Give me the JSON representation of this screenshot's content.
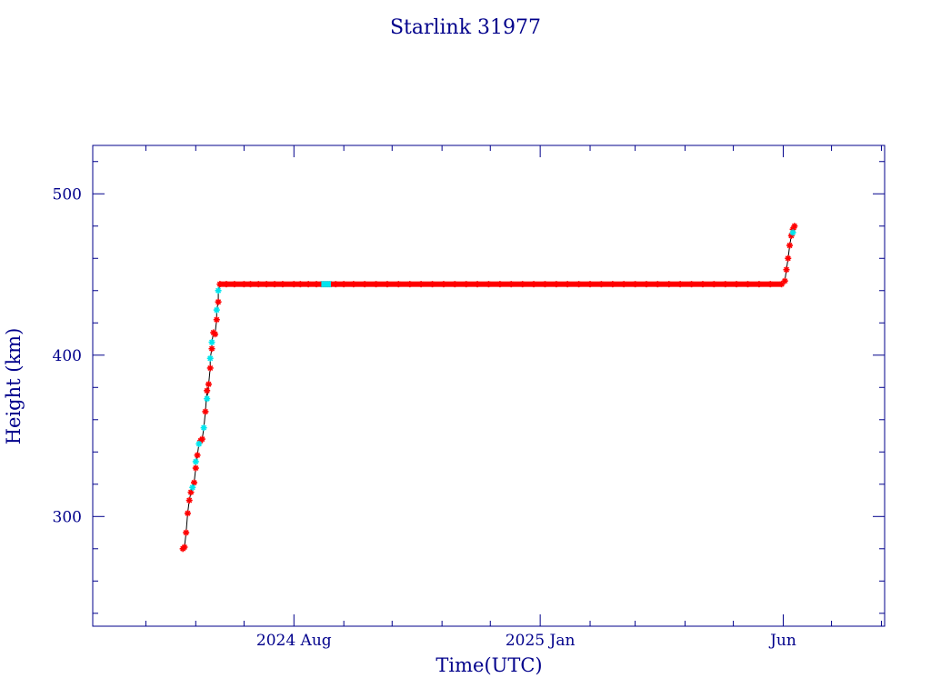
{
  "chart_data": {
    "type": "scatter",
    "title": "Starlink 31977",
    "xlabel": "Time(UTC)",
    "ylabel": "Height (km)",
    "ylim": [
      232,
      530
    ],
    "xlim": [
      "2024-03-29",
      "2025-08-03"
    ],
    "x_ticks": [
      {
        "date": "2024-08-01",
        "label": "2024 Aug"
      },
      {
        "date": "2025-01-01",
        "label": "2025 Jan"
      },
      {
        "date": "2025-06-01",
        "label": "Jun"
      }
    ],
    "x_minor_ticks": [
      "2024-05-01",
      "2024-06-01",
      "2024-07-01",
      "2024-09-01",
      "2024-10-01",
      "2024-11-01",
      "2024-12-01",
      "2025-02-01",
      "2025-03-01",
      "2025-04-01",
      "2025-05-01",
      "2025-07-01",
      "2025-08-01"
    ],
    "y_ticks": [
      300,
      400,
      500
    ],
    "y_minor_step": 20,
    "grid": false,
    "colors": {
      "frame": "#00008b",
      "line": "#000000",
      "marker_main": "#ff0000",
      "marker_alt": "#00e5ee"
    },
    "series": [
      {
        "marker_color": "#ff0000",
        "points": [
          {
            "x": "2024-05-24",
            "y": 280
          },
          {
            "x": "2024-05-25",
            "y": 281
          },
          {
            "x": "2024-05-26",
            "y": 290
          },
          {
            "x": "2024-05-27",
            "y": 302
          },
          {
            "x": "2024-05-28",
            "y": 310
          },
          {
            "x": "2024-05-29",
            "y": 315
          },
          {
            "x": "2024-05-31",
            "y": 321
          },
          {
            "x": "2024-06-01",
            "y": 330
          },
          {
            "x": "2024-06-02",
            "y": 338
          },
          {
            "x": "2024-06-04",
            "y": 347
          },
          {
            "x": "2024-06-05",
            "y": 348
          },
          {
            "x": "2024-06-07",
            "y": 365
          },
          {
            "x": "2024-06-08",
            "y": 378
          },
          {
            "x": "2024-06-09",
            "y": 382
          },
          {
            "x": "2024-06-10",
            "y": 392
          },
          {
            "x": "2024-06-11",
            "y": 404
          },
          {
            "x": "2024-06-12",
            "y": 414
          },
          {
            "x": "2024-06-13",
            "y": 413
          },
          {
            "x": "2024-06-14",
            "y": 422
          },
          {
            "x": "2024-06-15",
            "y": 433
          },
          {
            "x": "2024-06-16",
            "y": 444
          },
          {
            "x": "2024-06-20",
            "y": 444
          },
          {
            "x": "2024-06-25",
            "y": 444
          },
          {
            "x": "2024-07-01",
            "y": 444
          },
          {
            "x": "2024-07-05",
            "y": 444
          },
          {
            "x": "2024-07-10",
            "y": 444
          },
          {
            "x": "2024-07-15",
            "y": 444
          },
          {
            "x": "2024-07-20",
            "y": 444
          },
          {
            "x": "2024-07-25",
            "y": 444
          },
          {
            "x": "2024-08-01",
            "y": 444
          },
          {
            "x": "2024-08-05",
            "y": 444
          },
          {
            "x": "2024-08-10",
            "y": 444
          },
          {
            "x": "2024-08-15",
            "y": 444
          },
          {
            "x": "2024-08-27",
            "y": 444
          },
          {
            "x": "2024-09-01",
            "y": 444
          },
          {
            "x": "2024-09-07",
            "y": 444
          },
          {
            "x": "2024-09-14",
            "y": 444
          },
          {
            "x": "2024-09-21",
            "y": 444
          },
          {
            "x": "2024-09-28",
            "y": 444
          },
          {
            "x": "2024-10-05",
            "y": 444
          },
          {
            "x": "2024-10-12",
            "y": 444
          },
          {
            "x": "2024-10-19",
            "y": 444
          },
          {
            "x": "2024-10-26",
            "y": 444
          },
          {
            "x": "2024-11-02",
            "y": 444
          },
          {
            "x": "2024-11-09",
            "y": 444
          },
          {
            "x": "2024-11-16",
            "y": 444
          },
          {
            "x": "2024-11-23",
            "y": 444
          },
          {
            "x": "2024-11-30",
            "y": 444
          },
          {
            "x": "2024-12-07",
            "y": 444
          },
          {
            "x": "2024-12-14",
            "y": 444
          },
          {
            "x": "2024-12-21",
            "y": 444
          },
          {
            "x": "2024-12-28",
            "y": 444
          },
          {
            "x": "2025-01-04",
            "y": 444
          },
          {
            "x": "2025-01-11",
            "y": 444
          },
          {
            "x": "2025-01-18",
            "y": 444
          },
          {
            "x": "2025-01-25",
            "y": 444
          },
          {
            "x": "2025-02-01",
            "y": 444
          },
          {
            "x": "2025-02-08",
            "y": 444
          },
          {
            "x": "2025-02-15",
            "y": 444
          },
          {
            "x": "2025-02-22",
            "y": 444
          },
          {
            "x": "2025-03-01",
            "y": 444
          },
          {
            "x": "2025-03-08",
            "y": 444
          },
          {
            "x": "2025-03-15",
            "y": 444
          },
          {
            "x": "2025-03-22",
            "y": 444
          },
          {
            "x": "2025-03-29",
            "y": 444
          },
          {
            "x": "2025-04-05",
            "y": 444
          },
          {
            "x": "2025-04-12",
            "y": 444
          },
          {
            "x": "2025-04-19",
            "y": 444
          },
          {
            "x": "2025-04-26",
            "y": 444
          },
          {
            "x": "2025-05-03",
            "y": 444
          },
          {
            "x": "2025-05-10",
            "y": 444
          },
          {
            "x": "2025-05-17",
            "y": 444
          },
          {
            "x": "2025-05-24",
            "y": 444
          },
          {
            "x": "2025-05-31",
            "y": 444
          },
          {
            "x": "2025-06-02",
            "y": 446
          },
          {
            "x": "2025-06-03",
            "y": 453
          },
          {
            "x": "2025-06-04",
            "y": 460
          },
          {
            "x": "2025-06-05",
            "y": 468
          },
          {
            "x": "2025-06-06",
            "y": 474
          },
          {
            "x": "2025-06-07",
            "y": 478
          },
          {
            "x": "2025-06-08",
            "y": 480
          }
        ]
      },
      {
        "marker_color": "#00e5ee",
        "points": [
          {
            "x": "2024-05-30",
            "y": 318
          },
          {
            "x": "2024-06-01",
            "y": 334
          },
          {
            "x": "2024-06-03",
            "y": 345
          },
          {
            "x": "2024-06-06",
            "y": 355
          },
          {
            "x": "2024-06-08",
            "y": 373
          },
          {
            "x": "2024-06-10",
            "y": 398
          },
          {
            "x": "2024-06-11",
            "y": 408
          },
          {
            "x": "2024-06-14",
            "y": 428
          },
          {
            "x": "2024-06-15",
            "y": 440
          },
          {
            "x": "2024-08-18",
            "y": 444
          },
          {
            "x": "2024-08-19",
            "y": 444
          },
          {
            "x": "2024-08-20",
            "y": 444
          },
          {
            "x": "2024-08-21",
            "y": 444
          },
          {
            "x": "2024-08-22",
            "y": 444
          },
          {
            "x": "2024-08-23",
            "y": 444
          },
          {
            "x": "2024-08-24",
            "y": 444
          },
          {
            "x": "2025-06-07",
            "y": 476
          }
        ]
      }
    ]
  }
}
